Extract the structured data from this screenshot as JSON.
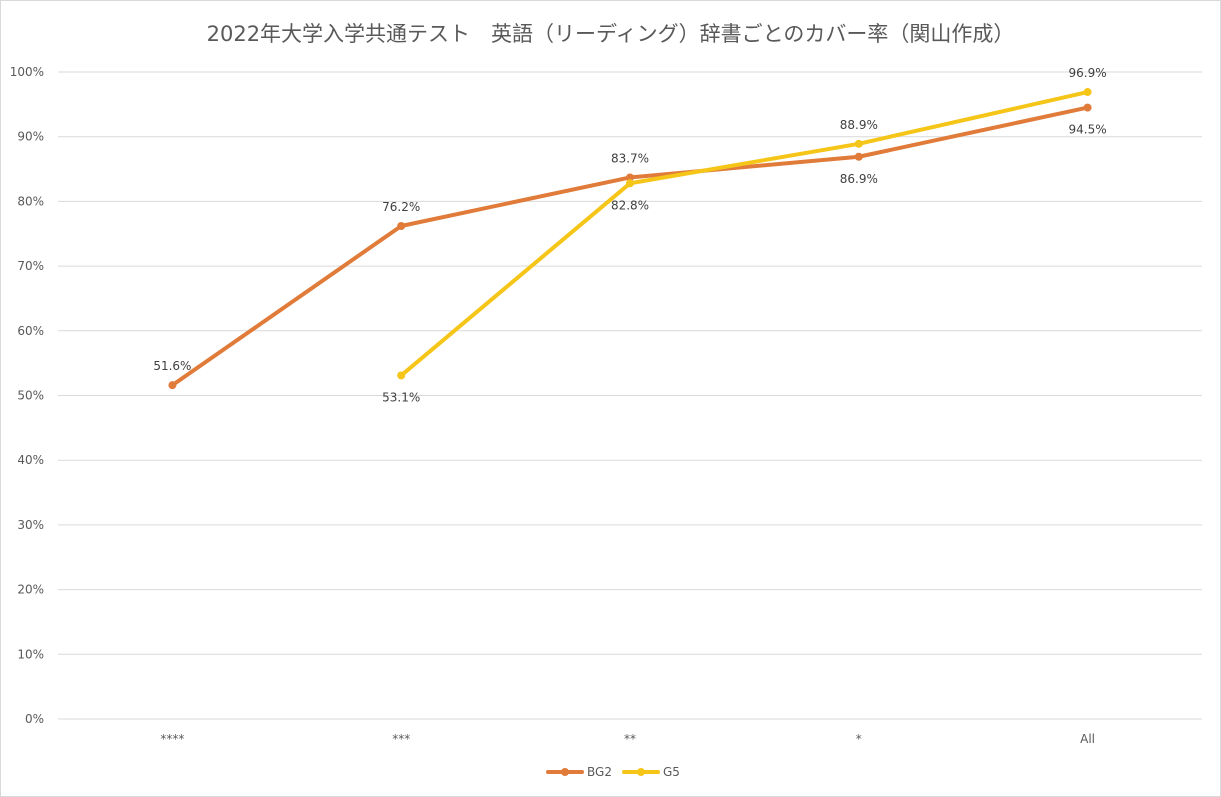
{
  "chart_data": {
    "type": "line",
    "title": "2022年大学入学共通テスト　英語（リーディング）辞書ごとのカバー率（関山作成）",
    "categories": [
      "****",
      "***",
      "**",
      "*",
      "All"
    ],
    "ylim": [
      0,
      100
    ],
    "yticks": [
      "0%",
      "10%",
      "20%",
      "30%",
      "40%",
      "50%",
      "60%",
      "70%",
      "80%",
      "90%",
      "100%"
    ],
    "grid": true,
    "legend_position": "bottom",
    "series": [
      {
        "name": "BG2",
        "color": "#E07B39",
        "values": [
          51.6,
          76.2,
          83.7,
          86.9,
          94.5
        ],
        "labels": [
          "51.6%",
          "76.2%",
          "83.7%",
          "86.9%",
          "94.5%"
        ]
      },
      {
        "name": "G5",
        "color": "#F5C518",
        "values": [
          null,
          53.1,
          82.8,
          88.9,
          96.9
        ],
        "labels": [
          "",
          "53.1%",
          "82.8%",
          "88.9%",
          "96.9%"
        ]
      }
    ]
  }
}
